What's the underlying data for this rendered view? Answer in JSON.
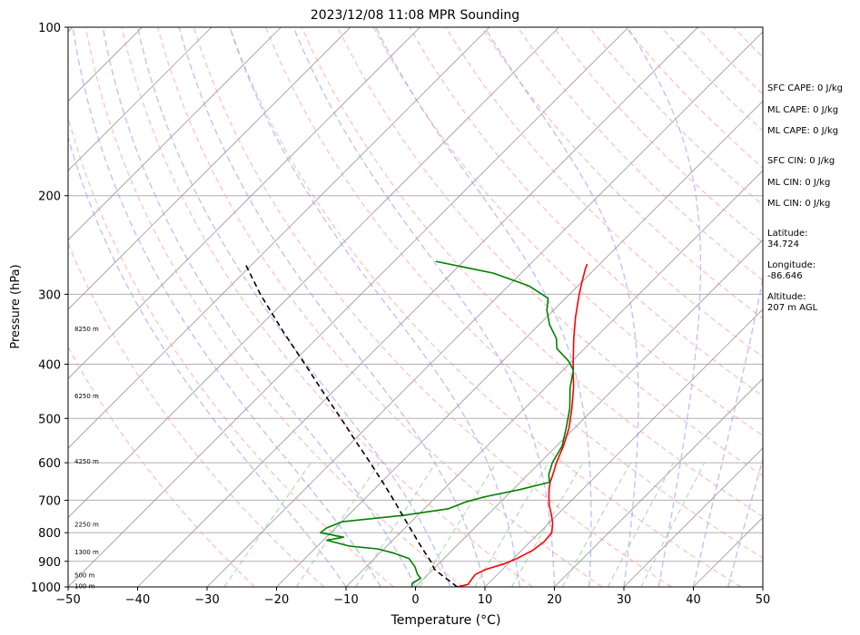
{
  "chart_data": {
    "type": "line",
    "title": "2023/12/08 11:08 MPR Sounding",
    "xlabel": "Temperature (°C)",
    "ylabel": "Pressure (hPa)",
    "x_scale": "skew-T",
    "y_scale": "log, inverted",
    "xlim": [
      -50,
      50
    ],
    "ylim": [
      1000,
      100
    ],
    "x_ticks": [
      "−50",
      "−40",
      "−30",
      "−20",
      "−10",
      "0",
      "10",
      "20",
      "30",
      "40",
      "50"
    ],
    "y_ticks": [
      "100",
      "200",
      "300",
      "400",
      "500",
      "600",
      "700",
      "800",
      "900",
      "1000"
    ],
    "grid": true,
    "series": [
      {
        "name": "",
        "kind": "temperature",
        "color": "#ff0000",
        "points": [
          [
            1000,
            6.0
          ],
          [
            990,
            7.2
          ],
          [
            970,
            7.0
          ],
          [
            950,
            6.8
          ],
          [
            930,
            7.6
          ],
          [
            910,
            9.4
          ],
          [
            890,
            10.5
          ],
          [
            860,
            11.6
          ],
          [
            830,
            12.0
          ],
          [
            800,
            11.8
          ],
          [
            770,
            10.6
          ],
          [
            740,
            9.0
          ],
          [
            715,
            7.5
          ],
          [
            690,
            6.2
          ],
          [
            670,
            5.2
          ],
          [
            650,
            4.3
          ],
          [
            630,
            3.6
          ],
          [
            600,
            2.4
          ],
          [
            560,
            1.0
          ],
          [
            520,
            -0.8
          ],
          [
            480,
            -3.2
          ],
          [
            440,
            -6.0
          ],
          [
            400,
            -9.4
          ],
          [
            360,
            -13.0
          ],
          [
            330,
            -15.8
          ],
          [
            300,
            -18.6
          ],
          [
            285,
            -20.0
          ],
          [
            270,
            -21.4
          ],
          [
            265,
            -21.8
          ]
        ]
      },
      {
        "name": "",
        "kind": "dewpoint",
        "color": "#008000",
        "points": [
          [
            1000,
            -0.5
          ],
          [
            985,
            -1.0
          ],
          [
            965,
            -0.5
          ],
          [
            950,
            -1.5
          ],
          [
            940,
            -2.0
          ],
          [
            920,
            -3.0
          ],
          [
            890,
            -5.0
          ],
          [
            870,
            -8.0
          ],
          [
            855,
            -11.0
          ],
          [
            845,
            -15.5
          ],
          [
            825,
            -19.5
          ],
          [
            815,
            -17.5
          ],
          [
            800,
            -21.5
          ],
          [
            785,
            -21.3
          ],
          [
            765,
            -20.0
          ],
          [
            745,
            -12.0
          ],
          [
            725,
            -6.5
          ],
          [
            705,
            -5.0
          ],
          [
            690,
            -3.0
          ],
          [
            670,
            1.0
          ],
          [
            650,
            4.2
          ],
          [
            630,
            3.0
          ],
          [
            600,
            1.8
          ],
          [
            560,
            0.8
          ],
          [
            520,
            -1.2
          ],
          [
            480,
            -3.5
          ],
          [
            440,
            -6.5
          ],
          [
            410,
            -8.5
          ],
          [
            395,
            -10.5
          ],
          [
            375,
            -14.0
          ],
          [
            360,
            -15.5
          ],
          [
            340,
            -18.5
          ],
          [
            320,
            -21.0
          ],
          [
            305,
            -22.5
          ],
          [
            290,
            -27.0
          ],
          [
            275,
            -34.0
          ],
          [
            262,
            -44.0
          ]
        ]
      },
      {
        "name": "",
        "kind": "parcel",
        "color": "#000000",
        "points": [
          [
            1000,
            6.0
          ],
          [
            980,
            4.4
          ],
          [
            960,
            2.7
          ],
          [
            930,
            0.2
          ],
          [
            900,
            -1.5
          ],
          [
            850,
            -4.8
          ],
          [
            800,
            -8.2
          ],
          [
            750,
            -11.8
          ],
          [
            700,
            -15.6
          ],
          [
            650,
            -19.8
          ],
          [
            600,
            -24.4
          ],
          [
            550,
            -29.5
          ],
          [
            500,
            -35.0
          ],
          [
            450,
            -41.2
          ],
          [
            400,
            -48.0
          ],
          [
            350,
            -55.8
          ],
          [
            300,
            -64.5
          ],
          [
            265,
            -71.0
          ]
        ]
      }
    ],
    "height_labels": [
      {
        "text": "100 m",
        "p": 995
      },
      {
        "text": "500 m",
        "p": 950
      },
      {
        "text": "1300 m",
        "p": 865
      },
      {
        "text": "2250 m",
        "p": 772
      },
      {
        "text": "4250 m",
        "p": 595
      },
      {
        "text": "6250 m",
        "p": 455
      },
      {
        "text": "8250 m",
        "p": 345
      }
    ],
    "background_lines": {
      "isotherm_color": "#999999",
      "dry_adiabat_color": "#ff9999",
      "moist_adiabat_color": "#9999ff",
      "mixing_ratio_color": "#88cc88"
    }
  },
  "indices": [
    "SFC CAPE: 0 J/kg",
    "ML CAPE: 0 J/kg",
    "ML CAPE: 0 J/kg",
    "SFC CIN: 0 J/kg",
    "ML CIN: 0 J/kg",
    "ML CIN: 0 J/kg"
  ],
  "location": {
    "lat_label": "Latitude:",
    "lat_value": "34.724",
    "lon_label": "Longitude:",
    "lon_value": "-86.646",
    "alt_label": "Altitude:",
    "alt_value": "207 m AGL"
  }
}
